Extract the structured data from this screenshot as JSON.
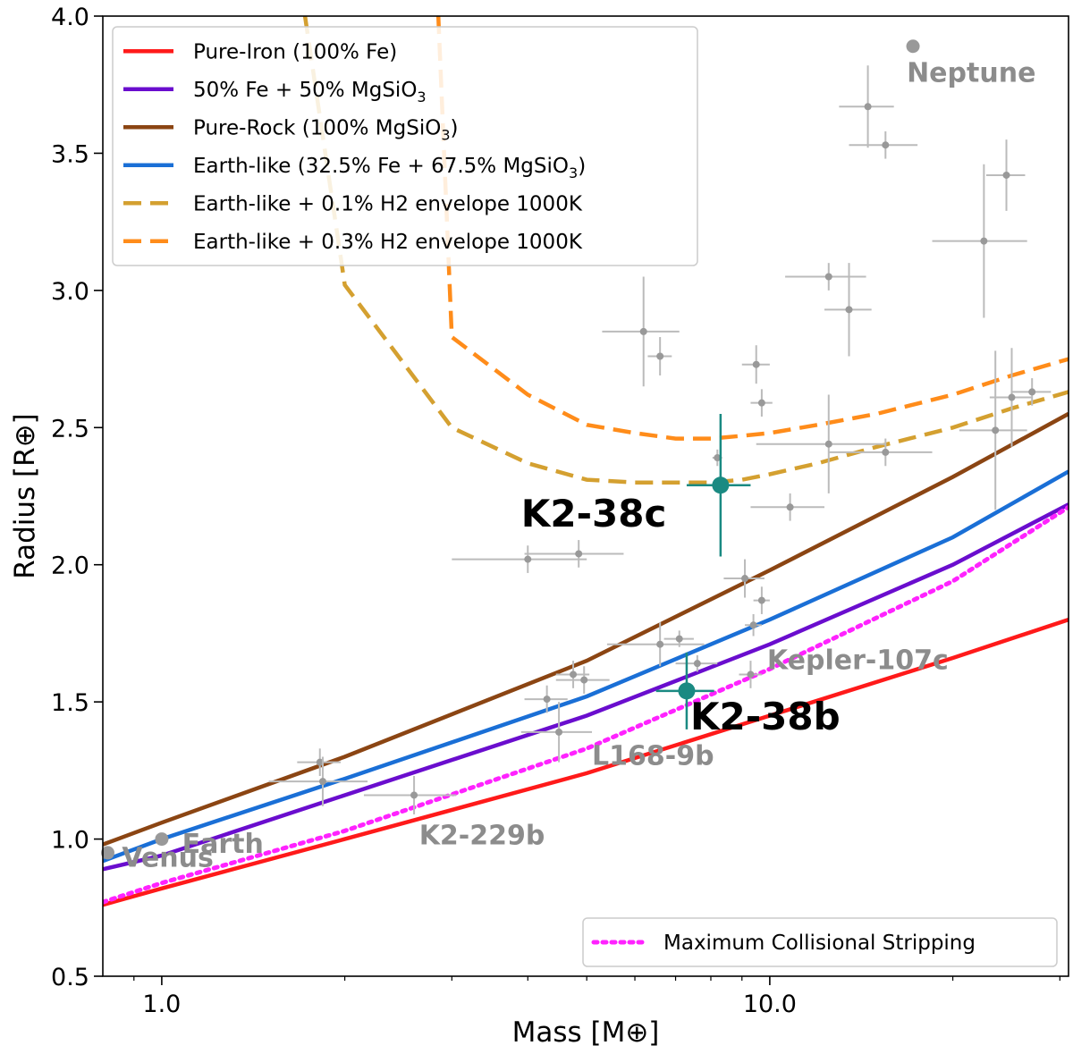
{
  "chart_data": {
    "type": "scatter",
    "xlabel": "Mass [M⊕]",
    "ylabel": "Radius [R⊕]",
    "xscale": "log",
    "xlim": [
      0.8,
      31
    ],
    "ylim": [
      0.5,
      4.0
    ],
    "xticks": [
      {
        "value": 1.0,
        "label": "1.0"
      },
      {
        "value": 10.0,
        "label": "10.0"
      }
    ],
    "yticks": [
      {
        "value": 0.5,
        "label": "0.5"
      },
      {
        "value": 1.0,
        "label": "1.0"
      },
      {
        "value": 1.5,
        "label": "1.5"
      },
      {
        "value": 2.0,
        "label": "2.0"
      },
      {
        "value": 2.5,
        "label": "2.5"
      },
      {
        "value": 3.0,
        "label": "3.0"
      },
      {
        "value": 3.5,
        "label": "3.5"
      },
      {
        "value": 4.0,
        "label": "4.0"
      }
    ],
    "grid": false,
    "legend_placement": "top-left",
    "legend2_placement": "bottom-right",
    "series": [
      {
        "name": "Pure-Iron  (100% Fe)",
        "name_parts": [
          {
            "t": "Pure-Iron  (100% Fe)"
          }
        ],
        "style": "solid",
        "color": "#ff1a1a",
        "legend": 1,
        "x": [
          0.8,
          1.0,
          2.0,
          5.0,
          10.0,
          20.0,
          31.0
        ],
        "y": [
          0.76,
          0.82,
          1.0,
          1.24,
          1.45,
          1.66,
          1.8
        ]
      },
      {
        "name": "50% Fe + 50% MgSiO3",
        "name_parts": [
          {
            "t": "50% Fe + 50% MgSiO"
          },
          {
            "t": "3",
            "sub": true
          }
        ],
        "style": "solid",
        "color": "#6a0dce",
        "legend": 1,
        "x": [
          0.8,
          1.0,
          2.0,
          5.0,
          10.0,
          20.0,
          31.0
        ],
        "y": [
          0.89,
          0.94,
          1.16,
          1.45,
          1.71,
          2.0,
          2.22
        ]
      },
      {
        "name": "Pure-Rock (100% MgSiO3)",
        "name_parts": [
          {
            "t": "Pure-Rock (100% MgSiO"
          },
          {
            "t": "3",
            "sub": true
          },
          {
            "t": ")"
          }
        ],
        "style": "solid",
        "color": "#8b4513",
        "legend": 1,
        "x": [
          0.8,
          1.0,
          2.0,
          5.0,
          10.0,
          20.0,
          31.0
        ],
        "y": [
          0.98,
          1.06,
          1.3,
          1.65,
          1.98,
          2.32,
          2.55
        ]
      },
      {
        "name": "Earth-like  (32.5% Fe + 67.5% MgSiO3)",
        "name_parts": [
          {
            "t": "Earth-like  (32.5% Fe + 67.5% MgSiO"
          },
          {
            "t": "3",
            "sub": true
          },
          {
            "t": ")"
          }
        ],
        "style": "solid",
        "color": "#1a6fd6",
        "legend": 1,
        "x": [
          0.8,
          1.0,
          2.0,
          5.0,
          10.0,
          20.0,
          31.0
        ],
        "y": [
          0.92,
          1.0,
          1.22,
          1.52,
          1.8,
          2.1,
          2.34
        ]
      },
      {
        "name": "Earth-like + 0.1% H2 envelope 1000K",
        "name_parts": [
          {
            "t": "Earth-like + 0.1% H2 envelope 1000K"
          }
        ],
        "style": "dashed",
        "color": "#d4a030",
        "legend": 1,
        "x": [
          1.72,
          2.0,
          3.0,
          4.0,
          5.0,
          6.0,
          7.0,
          8.0,
          9.0,
          10.0,
          12.0,
          15.0,
          20.0,
          25.0,
          31.0
        ],
        "y": [
          4.0,
          3.02,
          2.5,
          2.37,
          2.31,
          2.3,
          2.3,
          2.3,
          2.31,
          2.33,
          2.37,
          2.43,
          2.5,
          2.57,
          2.63
        ]
      },
      {
        "name": "Earth-like + 0.3% H2 envelope 1000K",
        "name_parts": [
          {
            "t": "Earth-like + 0.3% H2 envelope 1000K"
          }
        ],
        "style": "dashed",
        "color": "#ff8c1a",
        "legend": 1,
        "x": [
          2.85,
          3.0,
          4.0,
          5.0,
          6.0,
          7.0,
          8.0,
          9.0,
          10.0,
          12.0,
          15.0,
          20.0,
          25.0,
          31.0
        ],
        "y": [
          4.0,
          2.83,
          2.62,
          2.51,
          2.48,
          2.46,
          2.46,
          2.47,
          2.48,
          2.51,
          2.55,
          2.62,
          2.69,
          2.75
        ]
      },
      {
        "name": "Maximum Collisional Stripping",
        "name_parts": [
          {
            "t": "Maximum Collisional Stripping"
          }
        ],
        "style": "dotted",
        "color": "#ff22ff",
        "legend": 2,
        "x": [
          0.8,
          1.0,
          2.0,
          5.0,
          10.0,
          20.0,
          31.0
        ],
        "y": [
          0.77,
          0.84,
          1.03,
          1.33,
          1.62,
          1.94,
          2.21
        ]
      }
    ],
    "background_planets": [
      {
        "x": 1.82,
        "y": 1.28,
        "xerr": [
          0.15,
          0.15
        ],
        "yerr": [
          0.05,
          0.05
        ]
      },
      {
        "x": 1.84,
        "y": 1.21,
        "xerr": [
          0.34,
          0.34
        ],
        "yerr": [
          0.09,
          0.09
        ]
      },
      {
        "x": 2.6,
        "y": 1.16,
        "xerr": [
          0.45,
          0.45
        ],
        "yerr": [
          0.07,
          0.07
        ]
      },
      {
        "x": 4.0,
        "y": 2.02,
        "xerr": [
          1.0,
          1.0
        ],
        "yerr": [
          0.05,
          0.05
        ]
      },
      {
        "x": 4.85,
        "y": 2.04,
        "xerr": [
          0.9,
          0.9
        ],
        "yerr": [
          0.05,
          0.05
        ]
      },
      {
        "x": 4.3,
        "y": 1.51,
        "xerr": [
          0.35,
          0.35
        ],
        "yerr": [
          0.05,
          0.05
        ]
      },
      {
        "x": 4.5,
        "y": 1.39,
        "xerr": [
          0.6,
          0.6
        ],
        "yerr": [
          0.11,
          0.11
        ]
      },
      {
        "x": 4.75,
        "y": 1.6,
        "xerr": [
          0.3,
          0.3
        ],
        "yerr": [
          0.05,
          0.05
        ]
      },
      {
        "x": 4.95,
        "y": 1.58,
        "xerr": [
          0.5,
          0.5
        ],
        "yerr": [
          0.05,
          0.05
        ]
      },
      {
        "x": 6.2,
        "y": 2.85,
        "xerr": [
          0.9,
          0.9
        ],
        "yerr": [
          0.2,
          0.2
        ]
      },
      {
        "x": 6.6,
        "y": 2.76,
        "xerr": [
          0.3,
          0.3
        ],
        "yerr": [
          0.07,
          0.07
        ]
      },
      {
        "x": 6.6,
        "y": 1.71,
        "xerr": [
          1.2,
          1.2
        ],
        "yerr": [
          0.08,
          0.08
        ]
      },
      {
        "x": 7.1,
        "y": 1.73,
        "xerr": [
          0.4,
          0.4
        ],
        "yerr": [
          0.03,
          0.03
        ]
      },
      {
        "x": 7.6,
        "y": 1.64,
        "xerr": [
          0.6,
          0.6
        ],
        "yerr": [
          0.03,
          0.03
        ]
      },
      {
        "x": 8.2,
        "y": 2.39,
        "xerr": [
          0.15,
          0.15
        ],
        "yerr": [
          0.03,
          0.03
        ]
      },
      {
        "x": 9.1,
        "y": 1.95,
        "xerr": [
          0.7,
          0.7
        ],
        "yerr": [
          0.07,
          0.07
        ]
      },
      {
        "x": 9.4,
        "y": 1.78,
        "xerr": [
          0.3,
          0.3
        ],
        "yerr": [
          0.04,
          0.04
        ]
      },
      {
        "x": 9.3,
        "y": 1.6,
        "xerr": [
          0.4,
          0.4
        ],
        "yerr": [
          0.05,
          0.05
        ]
      },
      {
        "x": 9.5,
        "y": 2.73,
        "xerr": [
          0.5,
          0.5
        ],
        "yerr": [
          0.07,
          0.07
        ]
      },
      {
        "x": 9.7,
        "y": 2.59,
        "xerr": [
          0.4,
          0.4
        ],
        "yerr": [
          0.05,
          0.05
        ]
      },
      {
        "x": 9.7,
        "y": 1.87,
        "xerr": [
          0.3,
          0.3
        ],
        "yerr": [
          0.05,
          0.05
        ]
      },
      {
        "x": 10.8,
        "y": 2.21,
        "xerr": [
          1.5,
          1.5
        ],
        "yerr": [
          0.05,
          0.05
        ]
      },
      {
        "x": 12.5,
        "y": 3.05,
        "xerr": [
          1.9,
          1.9
        ],
        "yerr": [
          0.05,
          0.05
        ]
      },
      {
        "x": 12.5,
        "y": 2.44,
        "xerr": [
          3.0,
          3.0
        ],
        "yerr": [
          0.18,
          0.18
        ]
      },
      {
        "x": 13.5,
        "y": 2.93,
        "xerr": [
          1.2,
          1.2
        ],
        "yerr": [
          0.17,
          0.17
        ]
      },
      {
        "x": 15.5,
        "y": 2.41,
        "xerr": [
          3.0,
          3.0
        ],
        "yerr": [
          0.05,
          0.05
        ]
      },
      {
        "x": 14.5,
        "y": 3.67,
        "xerr": [
          1.5,
          1.5
        ],
        "yerr": [
          0.15,
          0.15
        ]
      },
      {
        "x": 15.5,
        "y": 3.53,
        "xerr": [
          2.0,
          2.0
        ],
        "yerr": [
          0.05,
          0.05
        ]
      },
      {
        "x": 22.5,
        "y": 3.18,
        "xerr": [
          4.0,
          4.0
        ],
        "yerr": [
          0.28,
          0.28
        ]
      },
      {
        "x": 24.5,
        "y": 3.42,
        "xerr": [
          1.8,
          1.8
        ],
        "yerr": [
          0.13,
          0.13
        ]
      },
      {
        "x": 23.5,
        "y": 2.49,
        "xerr": [
          3.0,
          3.0
        ],
        "yerr": [
          0.29,
          0.29
        ]
      },
      {
        "x": 25.0,
        "y": 2.61,
        "xerr": [
          2.0,
          2.0
        ],
        "yerr": [
          0.18,
          0.18
        ]
      },
      {
        "x": 27.0,
        "y": 2.63,
        "xerr": [
          2.0,
          2.0
        ],
        "yerr": [
          0.05,
          0.05
        ]
      }
    ],
    "solar_system": [
      {
        "name": "Venus",
        "x": 0.815,
        "y": 0.95,
        "lx": 0.86,
        "ly": 0.9
      },
      {
        "name": "Earth",
        "x": 1.0,
        "y": 1.0,
        "lx": 1.08,
        "ly": 0.95
      },
      {
        "name": "Neptune",
        "x": 17.2,
        "y": 3.89,
        "lx": 16.8,
        "ly": 3.76
      }
    ],
    "labels": [
      {
        "text": "Kepler-107c",
        "x": 9.9,
        "y": 1.62,
        "style": "grey"
      },
      {
        "text": "L168-9b",
        "x": 5.1,
        "y": 1.27,
        "style": "grey"
      },
      {
        "text": "K2-229b",
        "x": 2.65,
        "y": 0.98,
        "style": "grey"
      }
    ],
    "highlighted": [
      {
        "name": "K2-38c",
        "x": 8.3,
        "y": 2.29,
        "xerr": [
          1.0,
          1.0
        ],
        "yerr": [
          0.26,
          0.26
        ],
        "lx": 3.9,
        "ly": 2.14
      },
      {
        "name": "K2-38b",
        "x": 7.3,
        "y": 1.54,
        "xerr": [
          0.8,
          0.8
        ],
        "yerr": [
          0.14,
          0.14
        ],
        "lx": 7.4,
        "ly": 1.4
      }
    ],
    "colors": {
      "highlight": "#1a8a82",
      "background": "#bbbbbb",
      "background_point": "#999999",
      "grey_text": "#8c8c8c"
    }
  }
}
